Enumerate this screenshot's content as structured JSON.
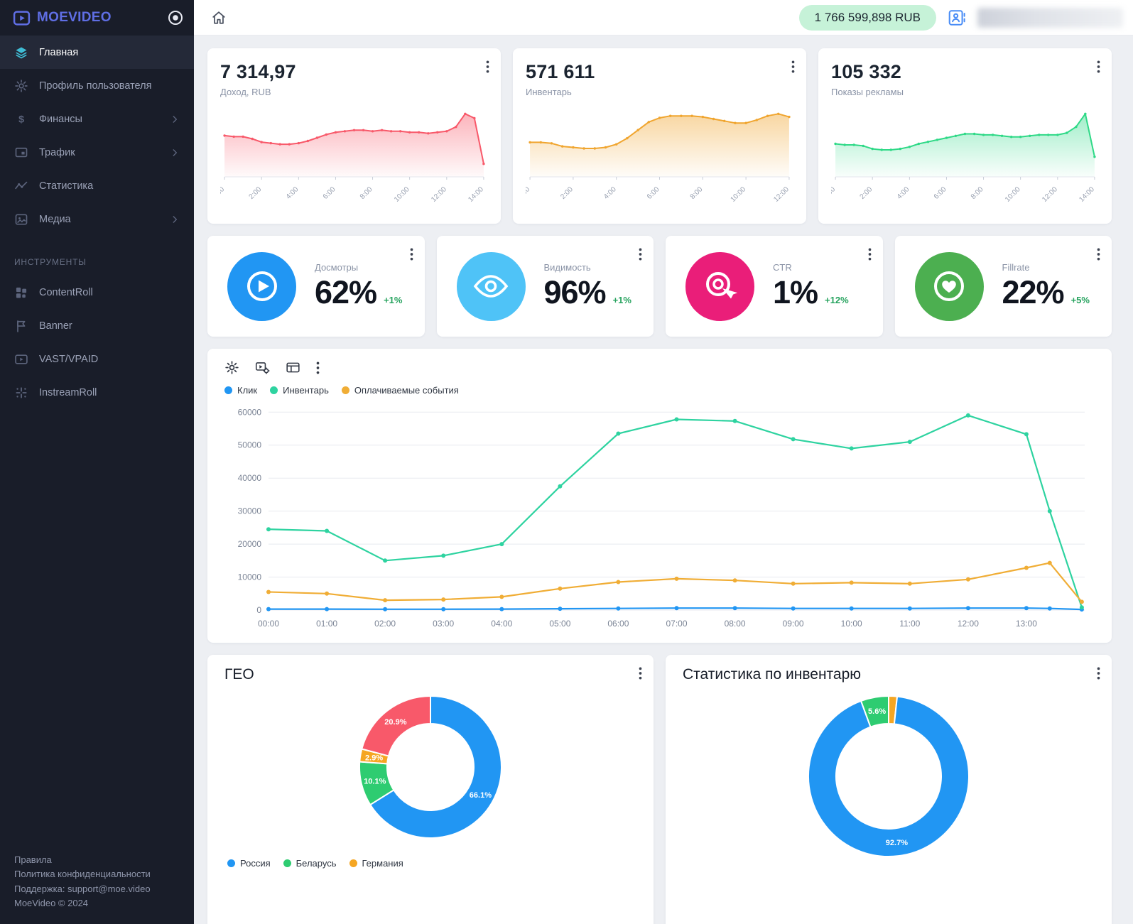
{
  "app": {
    "logo_text": "MOEVIDEO",
    "balance": "1 766 599,898 RUB"
  },
  "sidebar": {
    "items": [
      {
        "id": "home",
        "label": "Главная",
        "icon": "layers-icon",
        "active": true,
        "chevron": false
      },
      {
        "id": "profile",
        "label": "Профиль пользователя",
        "icon": "gear-icon",
        "active": false,
        "chevron": false
      },
      {
        "id": "finance",
        "label": "Финансы",
        "icon": "dollar-icon",
        "active": false,
        "chevron": true
      },
      {
        "id": "traffic",
        "label": "Трафик",
        "icon": "screen-icon",
        "active": false,
        "chevron": true
      },
      {
        "id": "statistics",
        "label": "Статистика",
        "icon": "pulse-icon",
        "active": false,
        "chevron": false
      },
      {
        "id": "media",
        "label": "Медиа",
        "icon": "image-icon",
        "active": false,
        "chevron": true
      }
    ],
    "tools_header": "ИНСТРУМЕНТЫ",
    "tools": [
      {
        "id": "contentroll",
        "label": "ContentRoll",
        "icon": "grid-icon"
      },
      {
        "id": "banner",
        "label": "Banner",
        "icon": "flag-icon"
      },
      {
        "id": "vast-vpaid",
        "label": "VAST/VPAID",
        "icon": "video-icon"
      },
      {
        "id": "instreamroll",
        "label": "InstreamRoll",
        "icon": "sparkle-icon"
      }
    ],
    "footer": [
      "Правила",
      "Политика конфиденциальности",
      "Поддержка: support@moe.video",
      "MoeVideo © 2024"
    ]
  },
  "kpi_cards": [
    {
      "label": "Досмотры",
      "value": "62%",
      "delta": "+1%",
      "color": "#2196f3",
      "icon": "play-circle-icon"
    },
    {
      "label": "Видимость",
      "value": "96%",
      "delta": "+1%",
      "color": "#4fc3f7",
      "icon": "eye-icon"
    },
    {
      "label": "CTR",
      "value": "1%",
      "delta": "+12%",
      "color": "#ea1e79",
      "icon": "target-icon"
    },
    {
      "label": "Fillrate",
      "value": "22%",
      "delta": "+5%",
      "color": "#4caf50",
      "icon": "heart-icon"
    }
  ],
  "chart_data": {
    "stat_cards": [
      {
        "type": "area",
        "value": "7 314,97",
        "label": "Доход, RUB",
        "color": "#f8596a",
        "x_labels": [
          "0:00",
          "2:00",
          "4:00",
          "6:00",
          "8:00",
          "10:00",
          "12:00",
          "14:00"
        ],
        "points": [
          38,
          37,
          37,
          35,
          32,
          31,
          30,
          30,
          31,
          33,
          36,
          39,
          41,
          42,
          43,
          43,
          42,
          43,
          42,
          42,
          41,
          41,
          40,
          41,
          42,
          46,
          58,
          54,
          12
        ]
      },
      {
        "type": "area",
        "value": "571 611",
        "label": "Инвентарь",
        "color": "#f0a52f",
        "x_labels": [
          "0:00",
          "2:00",
          "4:00",
          "6:00",
          "8:00",
          "10:00",
          "12:00"
        ],
        "points": [
          34,
          34,
          33,
          30,
          29,
          28,
          28,
          29,
          32,
          38,
          46,
          54,
          58,
          60,
          60,
          60,
          59,
          57,
          55,
          53,
          53,
          56,
          60,
          62,
          59
        ]
      },
      {
        "type": "area",
        "value": "105 332",
        "label": "Показы рекламы",
        "color": "#2fd987",
        "x_labels": [
          "0:00",
          "2:00",
          "4:00",
          "6:00",
          "8:00",
          "10:00",
          "12:00",
          "14:00"
        ],
        "points": [
          33,
          32,
          32,
          31,
          28,
          27,
          27,
          28,
          30,
          33,
          35,
          37,
          39,
          41,
          43,
          43,
          42,
          42,
          41,
          40,
          40,
          41,
          42,
          42,
          42,
          44,
          50,
          63,
          20
        ]
      }
    ],
    "main_chart": {
      "type": "line",
      "legend": [
        {
          "label": "Клик",
          "color": "#2196f3"
        },
        {
          "label": "Инвентарь",
          "color": "#2ed3a0"
        },
        {
          "label": "Оплачиваемые события",
          "color": "#f0ad35"
        }
      ],
      "y_ticks": [
        0,
        10000,
        20000,
        30000,
        40000,
        50000,
        60000
      ],
      "y_max": 62000,
      "x_max": 14,
      "x_labels": [
        "00:00",
        "01:00",
        "02:00",
        "03:00",
        "04:00",
        "05:00",
        "06:00",
        "07:00",
        "08:00",
        "09:00",
        "10:00",
        "11:00",
        "12:00",
        "13:00"
      ],
      "x": [
        0,
        1,
        2,
        3,
        4,
        5,
        6,
        7,
        8,
        9,
        10,
        11,
        12,
        13,
        13.4,
        13.95
      ],
      "series": [
        {
          "name": "Клик",
          "color": "#2196f3",
          "values": [
            300,
            300,
            250,
            250,
            300,
            400,
            500,
            600,
            600,
            500,
            500,
            500,
            600,
            600,
            500,
            200
          ]
        },
        {
          "name": "Инвентарь",
          "color": "#2ed3a0",
          "values": [
            24500,
            24000,
            15000,
            16500,
            20000,
            37500,
            53500,
            57800,
            57300,
            51800,
            49000,
            51000,
            59000,
            53300,
            30000,
            800
          ]
        },
        {
          "name": "Оплачиваемые события",
          "color": "#f0ad35",
          "values": [
            5500,
            5000,
            3000,
            3200,
            4000,
            6500,
            8500,
            9500,
            9000,
            8000,
            8300,
            8000,
            9300,
            12800,
            14300,
            2500
          ]
        }
      ]
    },
    "geo": {
      "title": "ГЕО",
      "type": "donut",
      "slices": [
        {
          "label": "Россия",
          "value": 66.1,
          "color": "#2196f3",
          "label_visible": true
        },
        {
          "label": "Беларусь",
          "value": 10.1,
          "color": "#2ecc71",
          "label_visible": true
        },
        {
          "label": "Германия",
          "value": 2.9,
          "color": "#f5a623",
          "label_visible": true
        },
        {
          "label": "",
          "value": 20.9,
          "color": "#f8596a",
          "label_visible": true
        }
      ]
    },
    "inventory": {
      "title": "Статистика по инвентарю",
      "type": "donut",
      "slices": [
        {
          "label": "",
          "value": 1.7,
          "color": "#f5a623",
          "label_visible": false
        },
        {
          "label": "",
          "value": 92.7,
          "color": "#2196f3",
          "label_visible": true
        },
        {
          "label": "",
          "value": 5.6,
          "color": "#2ecc71",
          "label_visible": true
        }
      ]
    }
  }
}
